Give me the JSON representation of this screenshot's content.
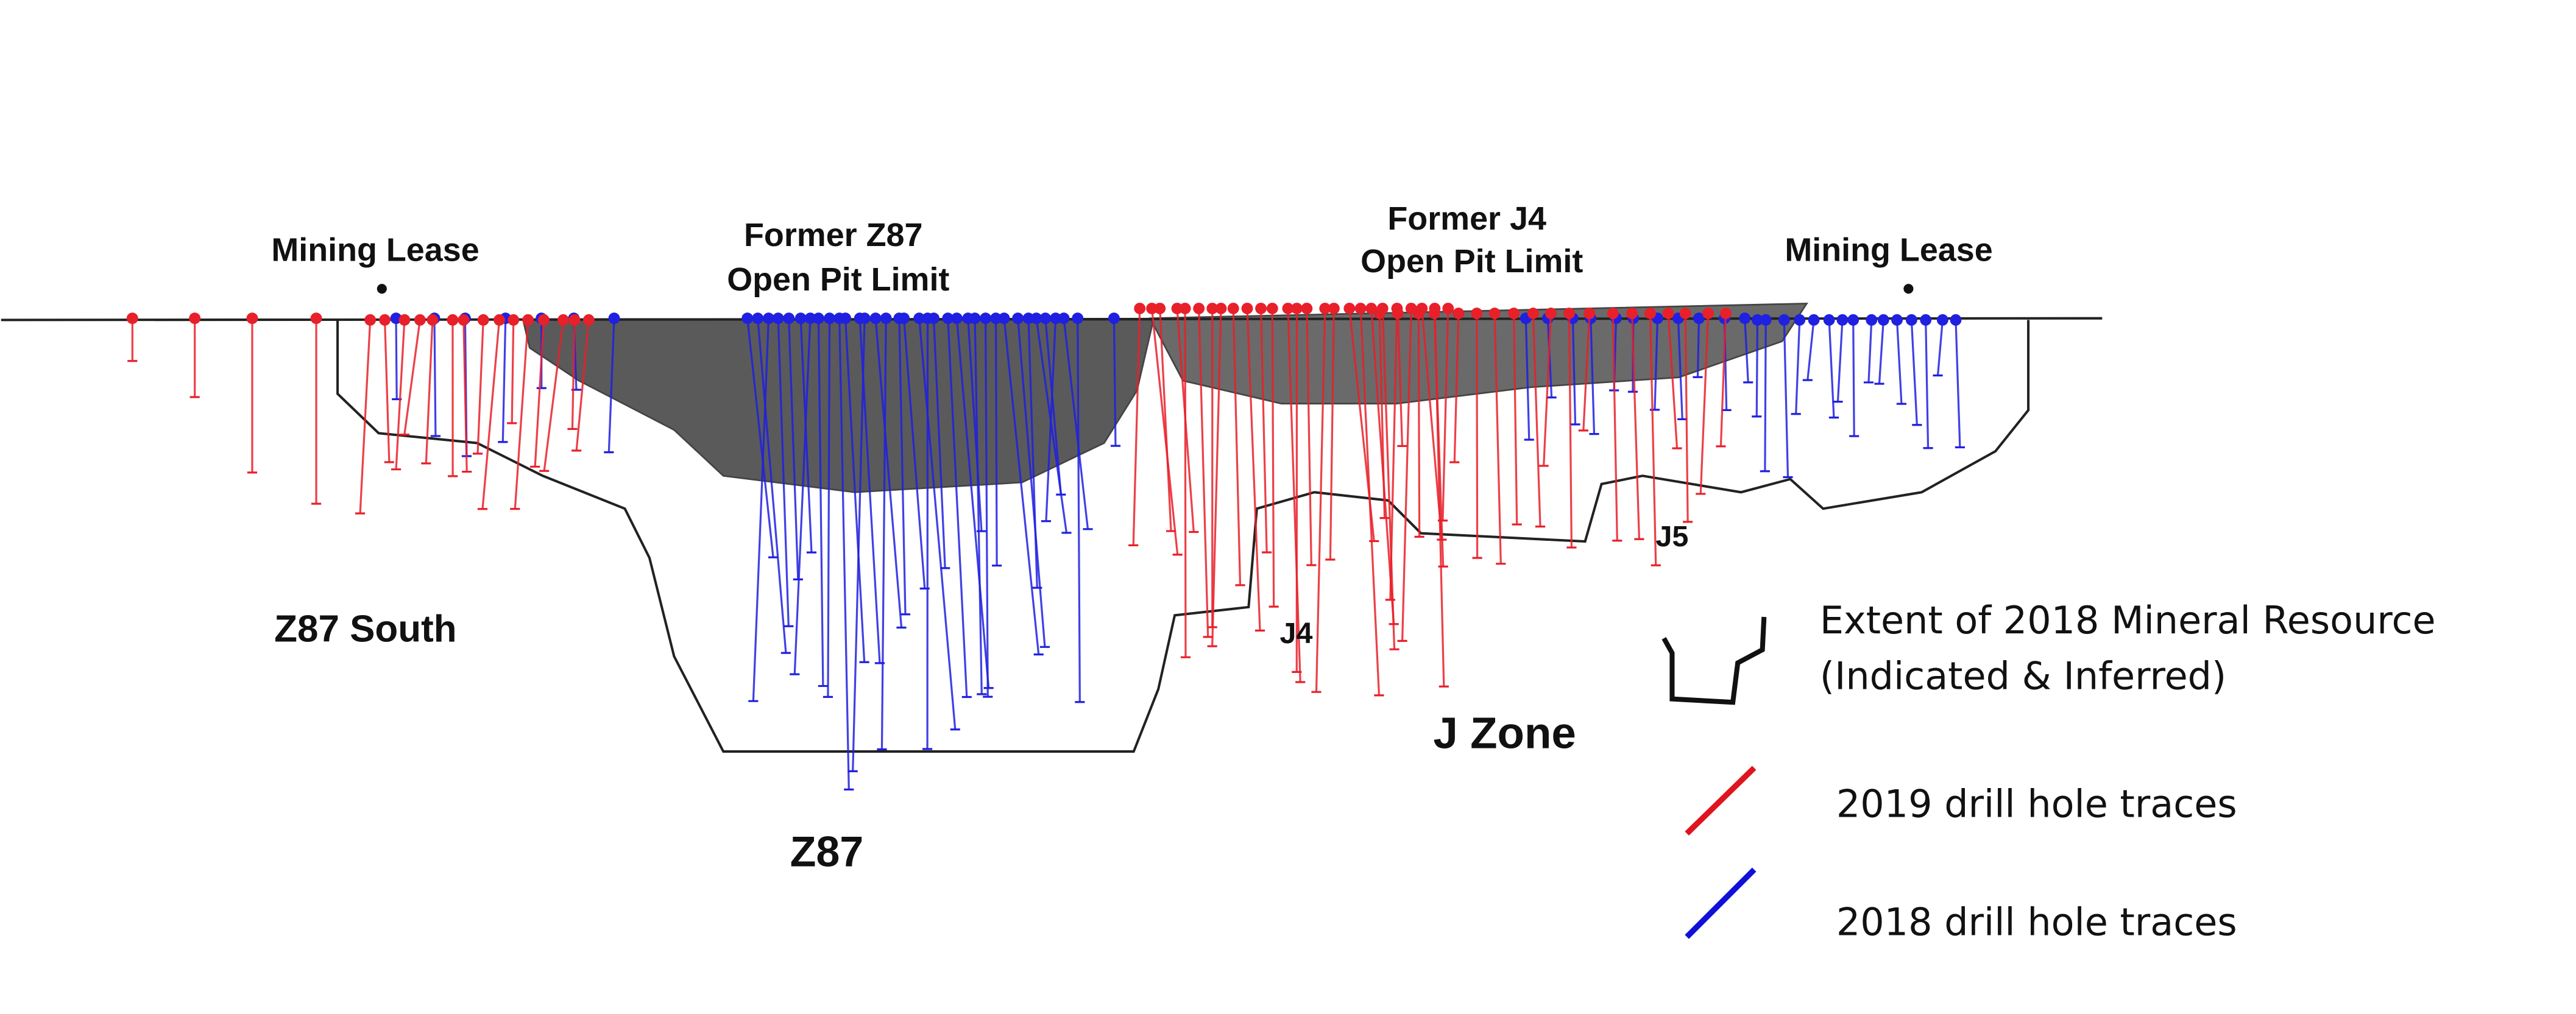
{
  "labels": {
    "mining_lease_left": "Mining Lease",
    "former_z87": "Former Z87",
    "z87_pit_limit": "Open Pit Limit",
    "former_j4": "Former J4",
    "j4_pit_limit": "Open Pit Limit",
    "mining_lease_right": "Mining Lease",
    "z87_south": "Z87 South",
    "z87": "Z87",
    "j4": "J4",
    "j5": "J5",
    "j_zone": "J Zone"
  },
  "legend": {
    "resource_line1": "Extent of 2018 Mineral Resource",
    "resource_line2": "(Indicated & Inferred)",
    "traces_2019": "2019 drill hole traces",
    "traces_2018": "2018 drill hole traces"
  }
}
